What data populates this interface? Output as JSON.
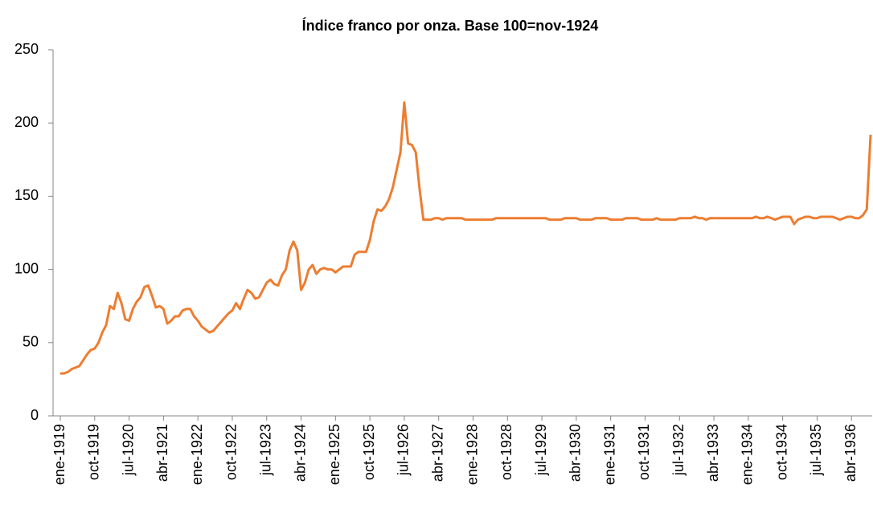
{
  "chart_data": {
    "type": "line",
    "title": "Índice franco por onza. Base 100=nov-1924",
    "categories": [
      "ene-1919",
      null,
      null,
      null,
      null,
      null,
      null,
      null,
      null,
      "oct-1919",
      null,
      null,
      null,
      null,
      null,
      null,
      null,
      null,
      "jul-1920",
      null,
      null,
      null,
      null,
      null,
      null,
      null,
      null,
      "abr-1921",
      null,
      null,
      null,
      null,
      null,
      null,
      null,
      null,
      "ene-1922",
      null,
      null,
      null,
      null,
      null,
      null,
      null,
      null,
      "oct-1922",
      null,
      null,
      null,
      null,
      null,
      null,
      null,
      null,
      "jul-1923",
      null,
      null,
      null,
      null,
      null,
      null,
      null,
      null,
      "abr-1924",
      null,
      null,
      null,
      null,
      null,
      null,
      null,
      null,
      "ene-1925",
      null,
      null,
      null,
      null,
      null,
      null,
      null,
      null,
      "oct-1925",
      null,
      null,
      null,
      null,
      null,
      null,
      null,
      null,
      "jul-1926",
      null,
      null,
      null,
      null,
      null,
      null,
      null,
      null,
      "abr-1927",
      null,
      null,
      null,
      null,
      null,
      null,
      null,
      null,
      "ene-1928",
      null,
      null,
      null,
      null,
      null,
      null,
      null,
      null,
      "oct-1928",
      null,
      null,
      null,
      null,
      null,
      null,
      null,
      null,
      "jul-1929",
      null,
      null,
      null,
      null,
      null,
      null,
      null,
      null,
      "abr-1930",
      null,
      null,
      null,
      null,
      null,
      null,
      null,
      null,
      "ene-1931",
      null,
      null,
      null,
      null,
      null,
      null,
      null,
      null,
      "oct-1931",
      null,
      null,
      null,
      null,
      null,
      null,
      null,
      null,
      "jul-1932",
      null,
      null,
      null,
      null,
      null,
      null,
      null,
      null,
      "abr-1933",
      null,
      null,
      null,
      null,
      null,
      null,
      null,
      null,
      "ene-1934",
      null,
      null,
      null,
      null,
      null,
      null,
      null,
      null,
      "oct-1934",
      null,
      null,
      null,
      null,
      null,
      null,
      null,
      null,
      "jul-1935",
      null,
      null,
      null,
      null,
      null,
      null,
      null,
      null,
      "abr-1936",
      null,
      null,
      null,
      null,
      null
    ],
    "values": [
      29,
      29,
      30,
      32,
      33,
      34,
      38,
      42,
      45,
      46,
      50,
      57,
      62,
      75,
      73,
      84,
      77,
      66,
      65,
      73,
      78,
      81,
      88,
      89,
      82,
      74,
      75,
      73,
      63,
      65,
      68,
      68,
      72,
      73,
      73,
      68,
      65,
      61,
      59,
      57,
      58,
      61,
      64,
      67,
      70,
      72,
      77,
      73,
      80,
      86,
      84,
      80,
      81,
      86,
      91,
      93,
      90,
      89,
      96,
      100,
      113,
      119,
      113,
      86,
      91,
      100,
      103,
      97,
      100,
      101,
      100,
      100,
      98,
      100,
      102,
      102,
      102,
      110,
      112,
      112,
      112,
      120,
      133,
      141,
      140,
      143,
      148,
      156,
      168,
      180,
      214,
      186,
      185,
      180,
      155,
      134,
      134,
      134,
      135,
      135,
      134,
      135,
      135,
      135,
      135,
      135,
      134,
      134,
      134,
      134,
      134,
      134,
      134,
      134,
      135,
      135,
      135,
      135,
      135,
      135,
      135,
      135,
      135,
      135,
      135,
      135,
      135,
      135,
      134,
      134,
      134,
      134,
      135,
      135,
      135,
      135,
      134,
      134,
      134,
      134,
      135,
      135,
      135,
      135,
      134,
      134,
      134,
      134,
      135,
      135,
      135,
      135,
      134,
      134,
      134,
      134,
      135,
      134,
      134,
      134,
      134,
      134,
      135,
      135,
      135,
      135,
      136,
      135,
      135,
      134,
      135,
      135,
      135,
      135,
      135,
      135,
      135,
      135,
      135,
      135,
      135,
      135,
      136,
      135,
      135,
      136,
      135,
      134,
      135,
      136,
      136,
      136,
      131,
      134,
      135,
      136,
      136,
      135,
      135,
      136,
      136,
      136,
      136,
      135,
      134,
      135,
      136,
      136,
      135,
      135,
      137,
      141,
      192
    ],
    "color": "#ed7d31",
    "ylim": [
      0,
      250
    ],
    "yticks": [
      0,
      50,
      100,
      150,
      200,
      250
    ],
    "grid": false
  }
}
